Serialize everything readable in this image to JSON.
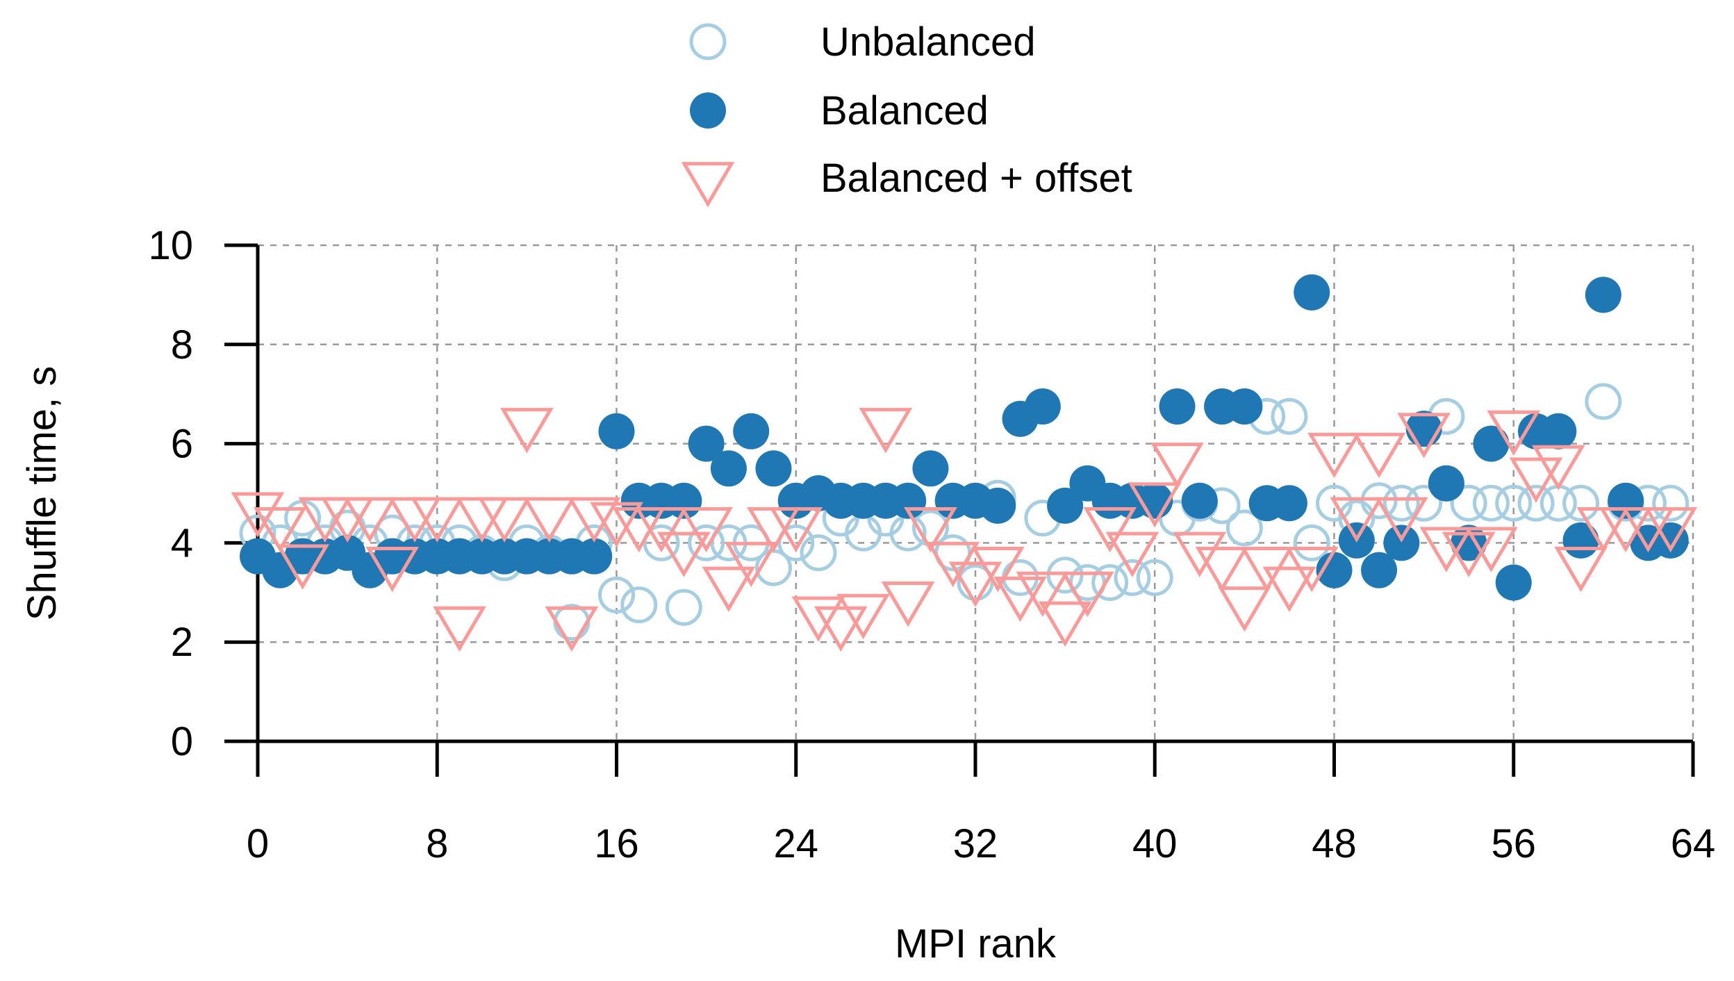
{
  "chart_data": {
    "type": "scatter",
    "title": "",
    "xlabel": "MPI rank",
    "ylabel": "Shuffle time, s",
    "xlim": [
      0,
      64
    ],
    "ylim": [
      0,
      10
    ],
    "xticks": [
      "0",
      "8",
      "16",
      "24",
      "32",
      "40",
      "48",
      "56",
      "64"
    ],
    "yticks": [
      "0",
      "2",
      "4",
      "6",
      "8",
      "10"
    ],
    "grid": true,
    "legend_position": "top-center",
    "colors": {
      "unbalanced": "#a6cee3",
      "balanced": "#1f78b4",
      "offset": "#fb9a99"
    },
    "series": [
      {
        "name": "Unbalanced",
        "marker": "open-circle",
        "values": [
          4.2,
          4.0,
          4.5,
          4.0,
          4.3,
          4.0,
          4.2,
          4.0,
          4.0,
          4.0,
          3.8,
          3.6,
          4.0,
          3.8,
          2.4,
          4.0,
          2.95,
          2.75,
          4.0,
          2.7,
          4.0,
          4.0,
          4.0,
          3.5,
          4.0,
          3.8,
          4.5,
          4.2,
          4.5,
          4.2,
          4.3,
          3.8,
          3.2,
          4.9,
          3.3,
          4.5,
          3.35,
          3.2,
          3.2,
          3.3,
          3.3,
          4.5,
          4.8,
          4.75,
          4.3,
          6.55,
          6.55,
          4.0,
          4.8,
          4.5,
          4.85,
          4.8,
          4.8,
          6.55,
          4.8,
          4.8,
          4.8,
          4.8,
          4.8,
          4.8,
          6.85,
          4.8,
          4.8,
          4.8
        ]
      },
      {
        "name": "Balanced",
        "marker": "filled-circle",
        "values": [
          3.73,
          3.45,
          3.73,
          3.73,
          3.8,
          3.45,
          3.73,
          3.73,
          3.73,
          3.73,
          3.73,
          3.73,
          3.73,
          3.73,
          3.73,
          3.73,
          6.25,
          4.85,
          4.85,
          4.85,
          6.0,
          5.5,
          6.25,
          5.5,
          4.85,
          5.0,
          4.85,
          4.85,
          4.85,
          4.85,
          5.5,
          4.85,
          4.85,
          4.75,
          6.5,
          6.75,
          4.75,
          5.2,
          4.85,
          4.85,
          4.85,
          6.75,
          4.85,
          6.75,
          6.75,
          4.8,
          4.8,
          9.05,
          3.45,
          4.05,
          3.45,
          4.0,
          6.3,
          5.2,
          4.0,
          6.0,
          3.2,
          6.25,
          6.25,
          4.05,
          9.0,
          4.85,
          4.0,
          4.05
        ]
      },
      {
        "name": "Balanced + offset",
        "marker": "open-triangle-down",
        "values": [
          4.7,
          4.4,
          3.65,
          4.6,
          4.6,
          4.6,
          3.6,
          4.6,
          4.6,
          2.4,
          4.6,
          4.6,
          6.4,
          4.6,
          2.4,
          4.6,
          4.5,
          4.4,
          4.4,
          3.9,
          4.4,
          3.2,
          3.7,
          4.4,
          4.4,
          2.6,
          2.4,
          2.65,
          6.4,
          2.9,
          4.4,
          3.7,
          3.3,
          3.6,
          3.0,
          3.1,
          2.5,
          3.1,
          4.4,
          3.9,
          4.9,
          5.7,
          3.9,
          3.6,
          2.8,
          3.6,
          3.2,
          3.6,
          5.9,
          4.6,
          5.9,
          4.6,
          6.3,
          4.0,
          3.9,
          4.0,
          6.35,
          5.4,
          5.65,
          3.6,
          4.4,
          4.4,
          4.4,
          4.4
        ]
      }
    ]
  }
}
